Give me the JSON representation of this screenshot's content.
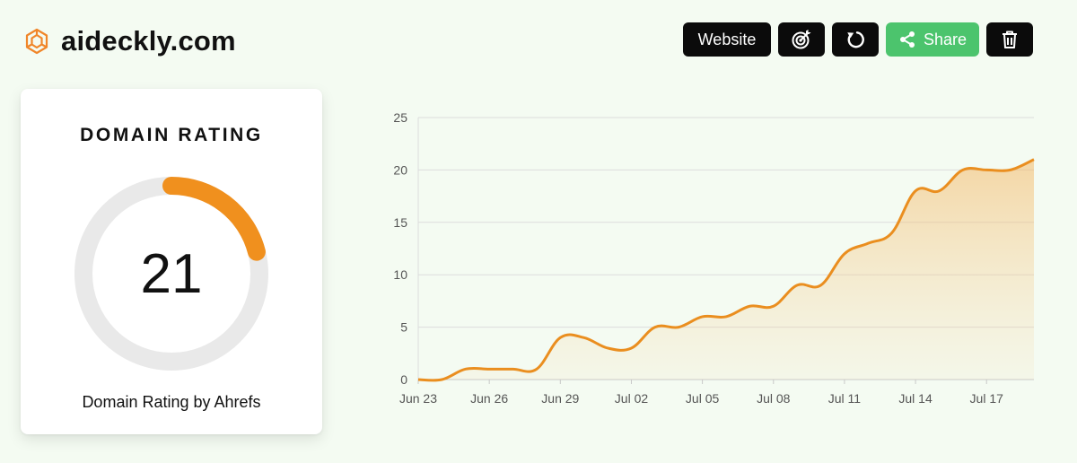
{
  "header": {
    "title": "aideckly.com",
    "logo_icon": "aideckly-logo-icon",
    "logo_color": "#f0862a"
  },
  "toolbar": {
    "website_label": "Website",
    "share_label": "Share",
    "icons": [
      "target-icon",
      "refresh-icon",
      "share-icon",
      "trash-icon"
    ],
    "share_color": "#4cc46d",
    "button_color": "#0b0b0b"
  },
  "rating_card": {
    "title": "DOMAIN RATING",
    "value": "21",
    "gauge_fraction": 0.21,
    "footer": "Domain Rating by Ahrefs",
    "accent_color": "#f0901e",
    "track_color": "#e9e9e9"
  },
  "chart_data": {
    "type": "area",
    "x": [
      "Jun 23",
      "Jun 24",
      "Jun 25",
      "Jun 26",
      "Jun 27",
      "Jun 28",
      "Jun 29",
      "Jun 30",
      "Jul 01",
      "Jul 02",
      "Jul 03",
      "Jul 04",
      "Jul 05",
      "Jul 06",
      "Jul 07",
      "Jul 08",
      "Jul 09",
      "Jul 10",
      "Jul 11",
      "Jul 12",
      "Jul 13",
      "Jul 14",
      "Jul 15",
      "Jul 16",
      "Jul 17",
      "Jul 18",
      "Jul 19"
    ],
    "values": [
      0,
      0,
      1,
      1,
      1,
      1,
      4,
      4,
      3,
      3,
      5,
      5,
      6,
      6,
      7,
      7,
      9,
      9,
      12,
      13,
      14,
      18,
      18,
      20,
      20,
      20,
      21
    ],
    "x_tick_labels": [
      "Jun 23",
      "Jun 26",
      "Jun 29",
      "Jul 02",
      "Jul 05",
      "Jul 08",
      "Jul 11",
      "Jul 14",
      "Jul 17"
    ],
    "y_ticks": [
      0,
      5,
      10,
      15,
      20,
      25
    ],
    "ylim": [
      0,
      25
    ],
    "title": "",
    "xlabel": "",
    "ylabel": "",
    "grid": true,
    "line_color": "#ea8e1f"
  }
}
